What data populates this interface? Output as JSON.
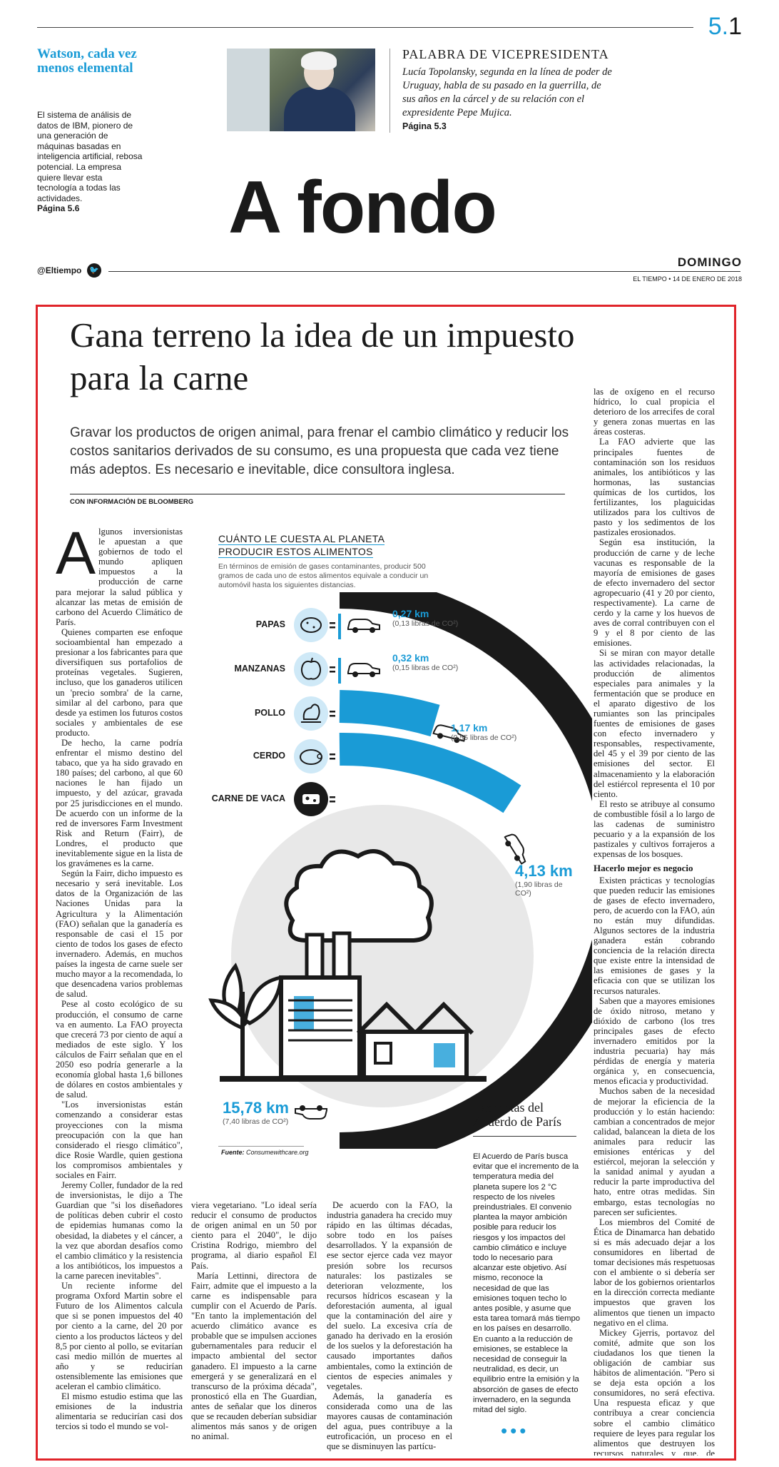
{
  "header": {
    "page_number_major": "5.",
    "page_number_minor": "1",
    "teaser": {
      "title": "Watson, cada vez menos elemental",
      "text": "El sistema de análisis de datos de IBM, pionero de una generación de máquinas basadas en inteligencia artificial, rebosa potencial. La empresa quiere llevar esta tecnología a todas las actividades.",
      "page": "Página 5.6"
    },
    "vice": {
      "title": "PALABRA DE VICEPRESIDENTA",
      "text": "Lucía Topolansky, segunda en la línea de poder de Uruguay, habla de su pasado en la guerrilla, de sus años en la cárcel y de su relación con el expresidente Pepe Mujica.",
      "page": "Página 5.3"
    },
    "section": "A fondo",
    "twitter": "@Eltiempo",
    "day": "DOMINGO",
    "dateline": "EL TIEMPO • 14 DE ENERO DE 2018"
  },
  "article": {
    "headline": "Gana terreno la idea de un impuesto para la carne",
    "deck": "Gravar los productos de origen animal, para frenar el cambio climático y reducir los costos sanitarios derivados de su consumo, es una propuesta que cada vez tiene más adeptos. Es necesario e inevitable, dice consultora inglesa.",
    "byline": "CON INFORMACIÓN DE BLOOMBERG",
    "dropcap": "A",
    "col1": [
      "lgunos inversionistas le apuestan a que gobiernos de todo el mundo apliquen impuestos a la producción de carne para mejorar la salud pública y alcanzar las metas de emisión de carbono del Acuerdo Climático de París.",
      "Quienes comparten ese enfoque socioambiental han empezado a presionar a los fabricantes para que diversifiquen sus portafolios de proteínas vegetales. Sugieren, incluso, que los ganaderos utilicen un 'precio sombra' de la carne, similar al del carbono, para que desde ya estimen los futuros costos sociales y ambientales de ese producto.",
      "De hecho, la carne podría enfrentar el mismo destino del tabaco, que ya ha sido gravado en 180 países; del carbono, al que 60 naciones le han fijado un impuesto, y del azúcar, gravada por 25 jurisdicciones en el mundo. De acuerdo con un informe de la red de inversores Farm Investment Risk and Return (Fairr), de Londres, el producto que inevitablemente sigue en la lista de los gravámenes es la carne.",
      "Según la Fairr, dicho impuesto es necesario y será inevitable. Los datos de la Organización de las Naciones Unidas para la Agricultura y la Alimentación (FAO) señalan que la ganadería es responsable de casi el 15 por ciento de todos los gases de efecto invernadero. Además, en muchos países la ingesta de carne suele ser mucho mayor a la recomendada, lo que desencadena varios problemas de salud.",
      "Pese al costo ecológico de su producción, el consumo de carne va en aumento. La FAO proyecta que crecerá 73 por ciento de aquí a mediados de este siglo. Y los cálculos de Fairr señalan que en el 2050 eso podría generarle a la economía global hasta 1,6 billones de dólares en costos ambientales y de salud.",
      "\"Los inversionistas están comenzando a considerar estas proyecciones con la misma preocupación con la que han considerado el riesgo climático\", dice Rosie Wardle, quien gestiona los compromisos ambientales y sociales en Fairr.",
      "Jeremy Coller, fundador de la red de inversionistas, le dijo a The Guardian que \"si los diseñadores de políticas deben cubrir el costo de epidemias humanas como la obesidad, la diabetes y el cáncer, a la vez que abordan desafíos como el cambio climático y la resistencia a los antibióticos, los impuestos a la carne parecen inevitables\".",
      "Un reciente informe del programa Oxford Martin sobre el Futuro de los Alimentos calcula que si se ponen impuestos del 40 por ciento a la carne, del 20 por ciento a los productos lácteos y del 8,5 por ciento al pollo, se evitarían casi medio millón de muertes al año y se reducirían ostensiblemente las emisiones que aceleran el cambio climático.",
      "El mismo estudio estima que las emisiones de la industria alimentaria se reducirían casi dos tercios si todo el mundo se vol-"
    ],
    "col2": [
      "viera vegetariano. \"Lo ideal sería reducir el consumo de productos de origen animal en un 50 por ciento para el 2040\", le dijo Cristina Rodrigo, miembro del programa, al diario español El País.",
      "María Lettinni, directora de Fairr, admite que el impuesto a la carne es indispensable para cumplir con el Acuerdo de París. \"En tanto la implementación del acuerdo climático avance es probable que se impulsen acciones gubernamentales para reducir el impacto ambiental del sector ganadero. El impuesto a la carne emergerá y se generalizará en el transcurso de la próxima década\", pronosticó ella en The Guardian, antes de señalar que los dineros que se recauden deberían subsidiar alimentos más sanos y de origen no animal."
    ],
    "col3": [
      "De acuerdo con la FAO, la industria ganadera ha crecido muy rápido en las últimas décadas, sobre todo en los países desarrollados. Y la expansión de ese sector ejerce cada vez mayor presión sobre los recursos naturales: los pastizales se deterioran velozmente, los recursos hídricos escasean y la deforestación aumenta, al igual que la contaminación del aire y del suelo. La excesiva cría de ganado ha derivado en la erosión de los suelos y la deforestación ha causado importantes daños ambientales, como la extinción de cientos de especies animales y vegetales.",
      "Además, la ganadería es considerada como una de las mayores causas de contaminación del agua, pues contribuye a la eutroficación, un proceso en el que se disminuyen las partícu-"
    ],
    "col4": [
      "las de oxígeno en el recurso hídrico, lo cual propicia el deterioro de los arrecifes de coral y genera zonas muertas en las áreas costeras.",
      "La FAO advierte que las principales fuentes de contaminación son los residuos animales, los antibióticos y las hormonas, las sustancias químicas de los curtidos, los fertilizantes, los plaguicidas utilizados para los cultivos de pasto y los sedimentos de los pastizales erosionados.",
      "Según esa institución, la producción de carne y de leche vacunas es responsable de la mayoría de emisiones de gases de efecto invernadero del sector agropecuario (41 y 20 por ciento, respectivamente). La carne de cerdo y la carne y los huevos de aves de corral contribuyen con el 9 y el 8 por ciento de las emisiones.",
      "Si se miran con mayor detalle las actividades relacionadas, la producción de alimentos especiales para animales y la fermentación que se produce en el aparato digestivo de los rumiantes son las principales fuentes de emisiones de gases con efecto invernadero y responsables, respectivamente, del 45 y el 39 por ciento de las emisiones del sector. El almacenamiento y la elaboración del estiércol representa el 10 por ciento.",
      "El resto se atribuye al consumo de combustible fósil a lo largo de las cadenas de suministro pecuario y a la expansión de los pastizales y cultivos forrajeros a expensas de los bosques."
    ],
    "col4_subhead": "Hacerlo mejor es negocio",
    "col4b": [
      "Existen prácticas y tecnologías que pueden reducir las emisiones de gases de efecto invernadero, pero, de acuerdo con la FAO, aún no están muy difundidas. Algunos sectores de la industria ganadera están cobrando conciencia de la relación directa que existe entre la intensidad de las emisiones de gases y la eficacia con que se utilizan los recursos naturales.",
      "Saben que a mayores emisiones de óxido nitroso, metano y dióxido de carbono (los tres principales gases de efecto invernadero emitidos por la industria pecuaria) hay más pérdidas de energía y materia orgánica y, en consecuencia, menos eficacia y productividad.",
      "Muchos saben de la necesidad de mejorar la eficiencia de la producción y lo están haciendo: cambian a concentrados de mejor calidad, balancean la dieta de los animales para reducir las emisiones entéricas y del estiércol, mejoran la selección y la sanidad animal y ayudan a reducir la parte improductiva del hato, entre otras medidas. Sin embargo, estas tecnologías no parecen ser suficientes.",
      "Los miembros del Comité de Ética de Dinamarca han debatido si es más adecuado dejar a los consumidores en libertad de tomar decisiones más respetuosas con el ambiente o si debería ser labor de los gobiernos orientarlos en la dirección correcta mediante impuestos que graven los alimentos que tienen un impacto negativo en el clima.",
      "Mickey Gjerris, portavoz del comité, admite que son los ciudadanos los que tienen la obligación de cambiar sus hábitos de alimentación. \"Pero si se deja esta opción a los consumidores, no será efectiva. Una respuesta eficaz y que contribuya a crear conciencia sobre el cambio climático requiere de leyes para regular los alimentos que destruyen los recursos naturales y que, de distintas formas, dañan nuestra salud\", concluye Gjerris."
    ],
    "metas": {
      "title": "Las metas del Acuerdo de París",
      "text": "El Acuerdo de París busca evitar que el incremento de la temperatura media del planeta supere los 2 °C respecto de los niveles preindustriales. El convenio plantea la mayor ambición posible para reducir los riesgos y los impactos del cambio climático e incluye todo lo necesario para alcanzar este objetivo. Así mismo, reconoce la necesidad de que las emisiones toquen techo lo antes posible, y asume que esta tarea tomará más tiempo en los países en desarrollo. En cuanto a la reducción de emisiones, se establece la necesidad de conseguir la neutralidad, es decir, un equilibrio entre la emisión y la absorción de gases de efecto invernadero, en la segunda mitad del siglo."
    },
    "more": "•••"
  },
  "infographic": {
    "title_line1": "CUÁNTO LE CUESTA AL PLANETA",
    "title_line2": "PRODUCIR ESTOS ALIMENTOS",
    "subtitle": "En términos de emisión de gases contaminantes, producir 500 gramos de cada uno de estos alimentos equivale a conducir un automóvil hasta los siguientes distancias.",
    "source_label": "Fuente:",
    "source": "Consumewithcare.org",
    "colors": {
      "accent": "#1a9bd6",
      "dark": "#1a1a1a",
      "light_circle": "#e8e8e8",
      "icon_bg": "#cfe9f7"
    },
    "items": [
      {
        "label": "PAPAS",
        "km_text": "0,27 km",
        "lbs_text": "(0,13 libras de CO²)",
        "km": 0.27,
        "icon": "potato-icon"
      },
      {
        "label": "MANZANAS",
        "km_text": "0,32 km",
        "lbs_text": "(0,15 libras de CO²)",
        "km": 0.32,
        "icon": "apple-icon"
      },
      {
        "label": "POLLO",
        "km_text": "1,17 km",
        "lbs_text": "(0,55 libras de CO²)",
        "km": 1.17,
        "icon": "chicken-icon"
      },
      {
        "label": "CERDO",
        "km_text": "4,13 km",
        "lbs_text": "(1,90 libras de CO²)",
        "km": 4.13,
        "icon": "pig-icon"
      },
      {
        "label": "CARNE DE VACA",
        "km_text": "15,78 km",
        "lbs_text": "(7,40 libras de CO²)",
        "km": 15.78,
        "icon": "cow-icon"
      }
    ]
  }
}
